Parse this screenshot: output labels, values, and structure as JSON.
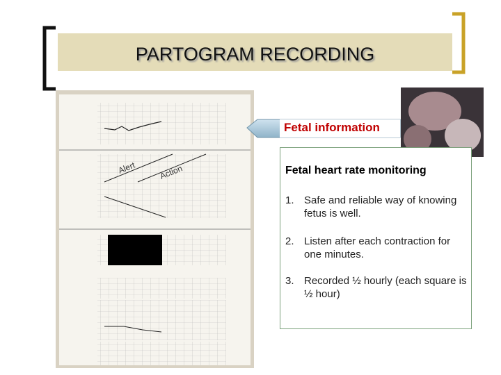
{
  "header": {
    "title": "PARTOGRAM RECORDING"
  },
  "callout": {
    "label": "Fetal information"
  },
  "content": {
    "heading": "Fetal heart rate monitoring",
    "items": [
      {
        "number": "1.",
        "text": "Safe and reliable way of knowing fetus is well."
      },
      {
        "number": "2.",
        "text": "Listen after each contraction for one minutes."
      },
      {
        "number": "3.",
        "text": "Recorded ½ hourly (each square is ½ hour)"
      }
    ]
  },
  "partogram": {
    "labels": [
      "Alert",
      "Action"
    ]
  }
}
